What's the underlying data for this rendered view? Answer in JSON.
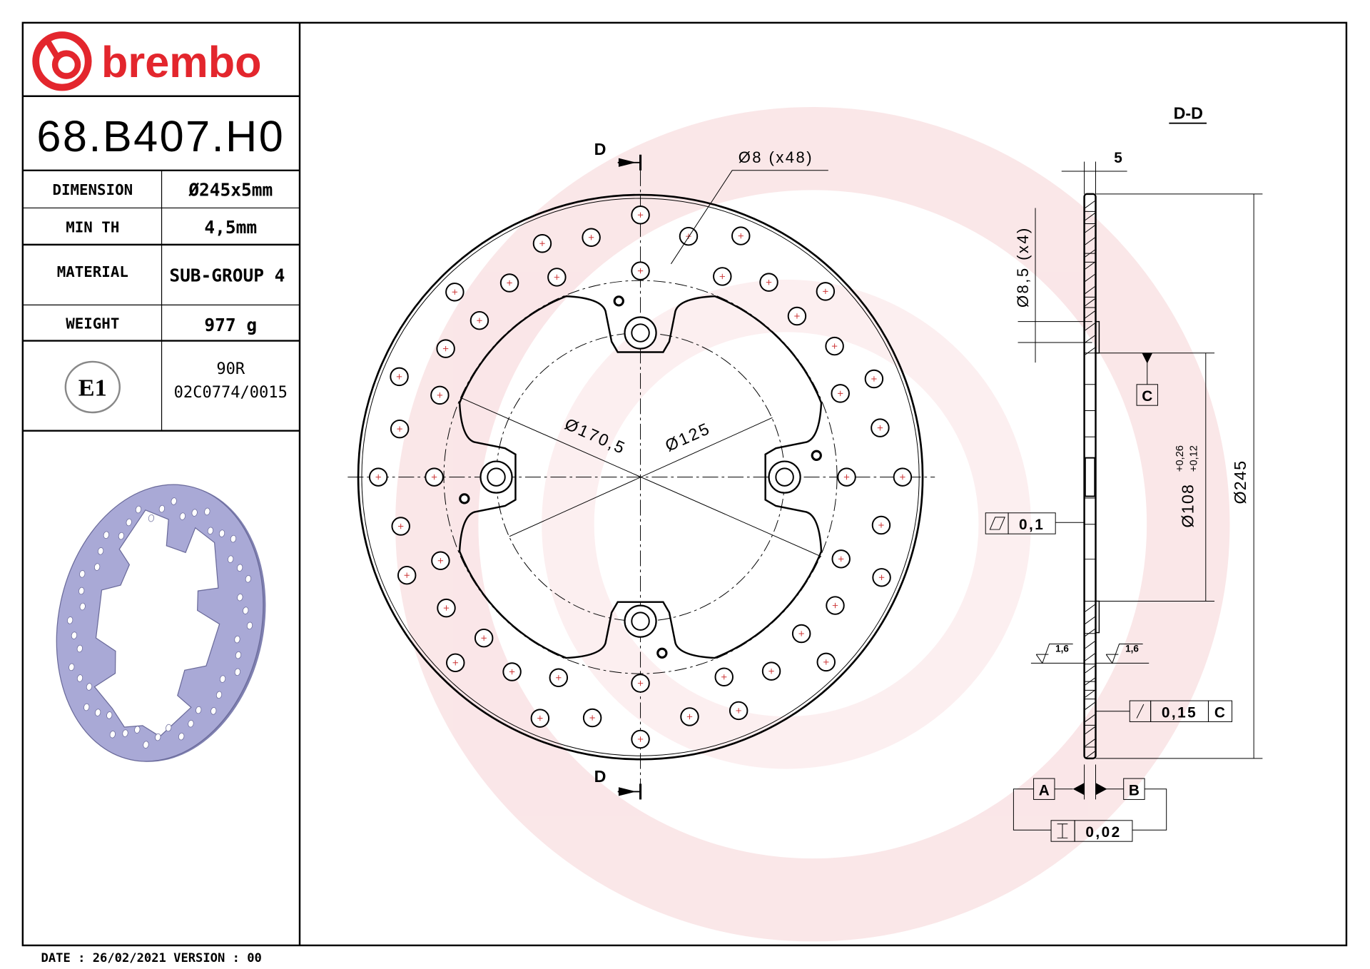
{
  "brand": {
    "logo_text": "brembo",
    "color": "#e3262d"
  },
  "part_number": "68.B407.H0",
  "specs": [
    {
      "label": "DIMENSION",
      "value": "Ø245x5mm"
    },
    {
      "label": "MIN TH",
      "value": "4,5mm"
    },
    {
      "label": "MATERIAL",
      "value": "SUB-GROUP 4"
    },
    {
      "label": "WEIGHT",
      "value": "977 g"
    }
  ],
  "approval": {
    "mark": "E1",
    "regulation": "90R",
    "number": "02C0774/0015"
  },
  "footer": "DATE : 26/02/2021 VERSION : 00",
  "front_view": {
    "section_mark": "D",
    "holes_label": "Ø8 (x48)",
    "dim_pcd": "Ø170,5",
    "dim_center": "Ø125",
    "hole_count": 48
  },
  "section_view": {
    "title": "D-D",
    "thickness": "5",
    "bolt_hole": "Ø8,5 (x4)",
    "datum_c": "C",
    "center_bore": "Ø108",
    "tol_upper": "+0,26",
    "tol_lower": "+0,12",
    "outer_dia": "Ø245",
    "flatness": "0,1",
    "roughness_left": "1,6",
    "roughness_right": "1,6",
    "runout_value": "0,15",
    "runout_datum": "C",
    "datum_a": "A",
    "datum_b": "B",
    "parallelism": "0,02"
  },
  "colors": {
    "line": "#000000",
    "watermark": "#f6d3d6",
    "disc_3d": "#a9a9d6",
    "brand_red": "#e3262d"
  }
}
